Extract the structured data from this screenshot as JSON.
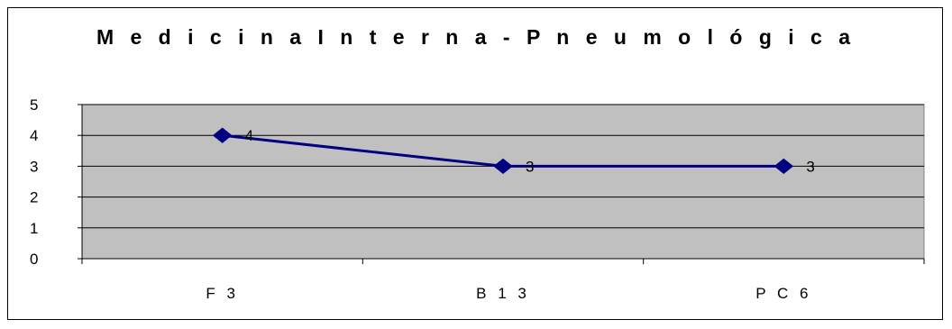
{
  "chart_data": {
    "type": "line",
    "title": "M e d i c i n a  I n t e r n a  -  P n e u m o l ó g i c a",
    "categories": [
      "F 3",
      "B 1 3",
      "P C 6"
    ],
    "series": [
      {
        "values": [
          4,
          3,
          3
        ],
        "color": "#000080"
      }
    ],
    "ylim": [
      0,
      5
    ],
    "yticks": [
      "0",
      "1",
      "2",
      "3",
      "4",
      "5"
    ],
    "data_labels": [
      "4",
      "3",
      "3"
    ],
    "grid": true,
    "plot_background": "#c0c0c0",
    "marker": "diamond"
  }
}
